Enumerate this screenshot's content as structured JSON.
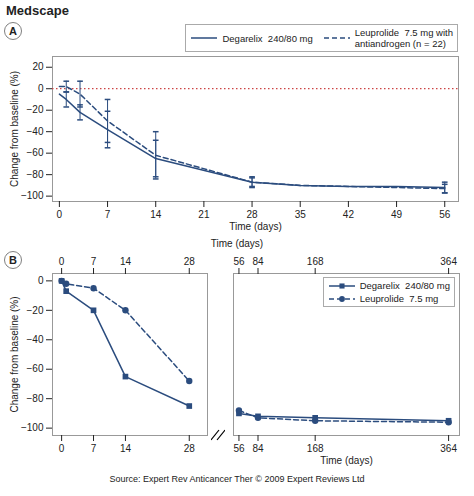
{
  "chart_data": [
    {
      "type": "line",
      "annotations": [
        "Medscape",
        "A"
      ],
      "xlabel": "Time (days)",
      "ylabel": "Change from baseline (%)",
      "xlim": [
        -1,
        58
      ],
      "xticks": [
        0,
        7,
        14,
        21,
        28,
        35,
        42,
        49,
        56
      ],
      "ylim": [
        -105,
        30
      ],
      "yticks": [
        20,
        0,
        -20,
        -40,
        -60,
        -80,
        -100
      ],
      "grid": false,
      "legend": "upper right",
      "reference_lines": [
        {
          "y": 0,
          "color": "#cc4444",
          "line_style": "dotted"
        }
      ],
      "series": [
        {
          "name": "Degarelix  240/80 mg",
          "color": "#2b4c7e",
          "line_style": "solid",
          "x": [
            0,
            1,
            3,
            7,
            14,
            28,
            35,
            42,
            49,
            56
          ],
          "values": [
            -5,
            -10,
            -22,
            -38,
            -65,
            -87,
            -90,
            -91,
            -91,
            -92
          ],
          "error_x": [
            1,
            3,
            7,
            14,
            28,
            56
          ],
          "error_y": [
            -10,
            -22,
            -38,
            -65,
            -87,
            -92
          ],
          "error_lo": [
            7,
            7,
            17,
            17,
            5,
            5
          ],
          "error_hi": [
            7,
            7,
            17,
            17,
            5,
            5
          ]
        },
        {
          "name": "Leuprolide  7.5 mg with\nantiandrogen (n = 22)",
          "color": "#2b4c7e",
          "line_style": "dashed",
          "x": [
            0,
            1,
            3,
            7,
            14,
            28,
            35,
            42,
            49,
            56
          ],
          "values": [
            2,
            2,
            -5,
            -30,
            -62,
            -87,
            -90,
            -91,
            -92,
            -93
          ],
          "error_x": [
            1,
            3,
            7,
            14,
            28,
            56
          ],
          "error_y": [
            2,
            -5,
            -30,
            -62,
            -87,
            -93
          ],
          "error_lo": [
            5,
            12,
            20,
            22,
            4,
            4
          ],
          "error_hi": [
            5,
            12,
            20,
            22,
            4,
            4
          ]
        }
      ]
    },
    {
      "type": "line",
      "annotations": [
        "B",
        "Time (days)"
      ],
      "ylabel": "Change from baseline (%)",
      "xlim": [
        -2,
        32
      ],
      "xticks": [
        0,
        7,
        14,
        28
      ],
      "ylim": [
        -105,
        5
      ],
      "yticks": [
        0,
        -20,
        -40,
        -60,
        -80,
        -100
      ],
      "grid": false,
      "series": [
        {
          "name": "Degarelix  240/80 mg",
          "color": "#2b4c7e",
          "line_style": "solid",
          "marker": "square",
          "x": [
            0,
            1,
            7,
            14,
            28
          ],
          "values": [
            0,
            -7,
            -20,
            -65,
            -85
          ]
        },
        {
          "name": "Leuprolide  7.5 mg",
          "color": "#2b4c7e",
          "line_style": "dashed",
          "marker": "circle",
          "x": [
            0,
            1,
            7,
            14,
            28
          ],
          "values": [
            0,
            -2,
            -5,
            -20,
            -68
          ]
        }
      ]
    },
    {
      "type": "line",
      "annotations": [
        "Source: Expert Rev Anticancer Ther © 2009 Expert Reviews Ltd"
      ],
      "xlabel": "Time (days)",
      "xlim": [
        48,
        380
      ],
      "xticks": [
        56,
        84,
        168,
        364
      ],
      "ylim": [
        -105,
        5
      ],
      "tick_labels": "x",
      "grid": false,
      "legend": "upper right",
      "series": [
        {
          "name": "Degarelix  240/80 mg",
          "color": "#2b4c7e",
          "line_style": "solid",
          "marker": "square",
          "x": [
            56,
            84,
            168,
            364
          ],
          "values": [
            -90,
            -92,
            -93,
            -95
          ]
        },
        {
          "name": "Leuprolide  7.5 mg",
          "color": "#2b4c7e",
          "line_style": "dashed",
          "marker": "circle",
          "x": [
            56,
            84,
            168,
            364
          ],
          "values": [
            -88,
            -93,
            -95,
            -96
          ]
        }
      ]
    }
  ]
}
